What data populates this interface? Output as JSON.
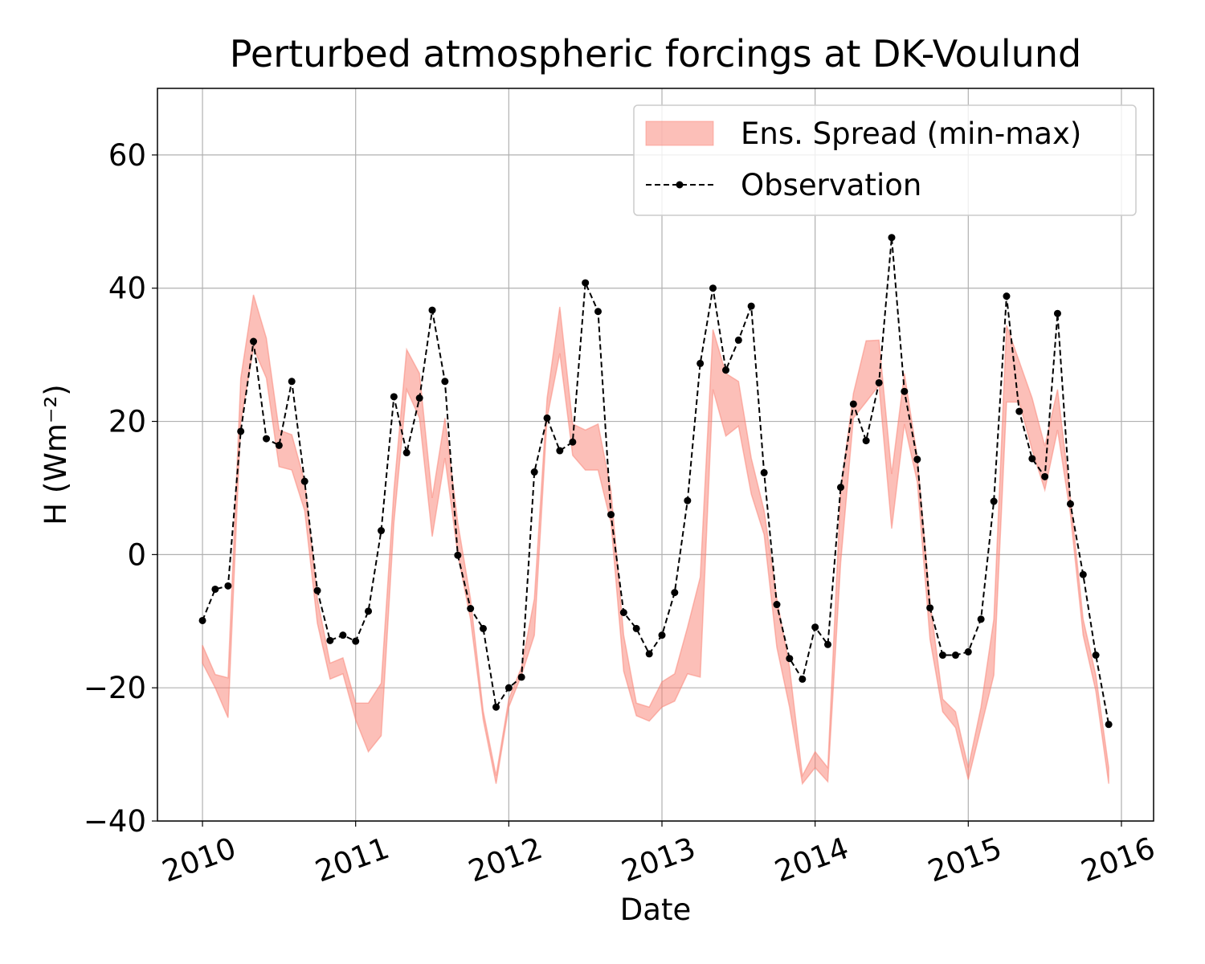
{
  "chart_data": {
    "type": "line",
    "title": "Perturbed atmospheric forcings at DK-Voulund",
    "x_label": "Date",
    "y_label": "H  (Wm⁻²)",
    "x": [
      2010,
      2010.083,
      2010.167,
      2010.25,
      2010.333,
      2010.417,
      2010.5,
      2010.583,
      2010.667,
      2010.75,
      2010.833,
      2010.917,
      2011,
      2011.083,
      2011.167,
      2011.25,
      2011.333,
      2011.417,
      2011.5,
      2011.583,
      2011.667,
      2011.75,
      2011.833,
      2011.917,
      2012,
      2012.083,
      2012.167,
      2012.25,
      2012.333,
      2012.417,
      2012.5,
      2012.583,
      2012.667,
      2012.75,
      2012.833,
      2012.917,
      2013,
      2013.083,
      2013.167,
      2013.25,
      2013.333,
      2013.417,
      2013.5,
      2013.583,
      2013.667,
      2013.75,
      2013.833,
      2013.917,
      2014,
      2014.083,
      2014.167,
      2014.25,
      2014.333,
      2014.417,
      2014.5,
      2014.583,
      2014.667,
      2014.75,
      2014.833,
      2014.917,
      2015,
      2015.083,
      2015.167,
      2015.25,
      2015.333,
      2015.417,
      2015.5,
      2015.583,
      2015.667,
      2015.75,
      2015.833,
      2015.917
    ],
    "series": [
      {
        "name": "Ens. Spread (min-max)",
        "kind": "band",
        "color": "#fa8072",
        "alpha": 0.5,
        "upper": [
          -13.6,
          -18,
          -18.5,
          26.5,
          39,
          32.5,
          18.7,
          18,
          11,
          -6.6,
          -16.3,
          -15.5,
          -22.3,
          -22.3,
          -19.3,
          9.7,
          30.8,
          27.2,
          8.5,
          20.5,
          4.8,
          -6.6,
          -23.5,
          -33.2,
          -21.7,
          -16.9,
          -6.6,
          23.5,
          37.2,
          19.6,
          18.7,
          19.6,
          9.7,
          -12.1,
          -22.3,
          -22.9,
          -19.1,
          -17.9,
          -10.9,
          -3.4,
          33.8,
          27.2,
          26,
          14.5,
          6.6,
          -6.6,
          -16.9,
          -33.2,
          -29.6,
          -32,
          9.7,
          24.2,
          32.1,
          32.2,
          12.1,
          27.2,
          14.7,
          -7,
          -21.7,
          -23.6,
          -32,
          -22.9,
          -9.7,
          34.4,
          29,
          23.5,
          16.3,
          24.8,
          8.5,
          -9.7,
          -18.1,
          -32
        ],
        "lower": [
          -16.3,
          -20,
          -24.5,
          20,
          31,
          26.5,
          13.2,
          12.7,
          6.6,
          -10.3,
          -18.7,
          -17.9,
          -24.8,
          -29.6,
          -27.2,
          4.8,
          24.8,
          20.5,
          2.7,
          14.5,
          0,
          -9.7,
          -24.8,
          -34.4,
          -22.9,
          -18.1,
          -12.1,
          20.5,
          30.2,
          14.9,
          12.7,
          12.7,
          4.8,
          -17.5,
          -24.2,
          -25,
          -22.9,
          -22,
          -17.9,
          -18.4,
          24.8,
          17.8,
          19.3,
          9.1,
          3,
          -13.9,
          -22.9,
          -34.4,
          -32,
          -34.1,
          -1.2,
          20.5,
          22.9,
          25.4,
          3.9,
          19.6,
          10.9,
          -12.7,
          -23.6,
          -26,
          -33.8,
          -26,
          -18.1,
          22.9,
          22.9,
          15.7,
          9.7,
          18.7,
          6,
          -12.1,
          -20.5,
          -34.4
        ]
      },
      {
        "name": "Observation",
        "kind": "line",
        "color": "#000000",
        "dashed": true,
        "marker": true,
        "values": [
          -9.9,
          -5.2,
          -4.7,
          18.5,
          32,
          17.4,
          16.4,
          26,
          11,
          -5.4,
          -12.9,
          -12.1,
          -13,
          -8.5,
          3.6,
          23.7,
          15.3,
          23.5,
          36.7,
          26,
          -0.1,
          -8.1,
          -11.1,
          -22.9,
          -20,
          -18.4,
          12.4,
          20.5,
          15.6,
          16.9,
          40.8,
          36.5,
          6,
          -8.7,
          -11.1,
          -14.9,
          -12.1,
          -5.7,
          8.1,
          28.7,
          40,
          27.7,
          32.2,
          37.3,
          12.3,
          -7.5,
          -15.6,
          -18.7,
          -10.9,
          -13.5,
          10.1,
          22.6,
          17.1,
          25.8,
          47.6,
          24.5,
          14.3,
          -8,
          -15.1,
          -15.1,
          -14.6,
          -9.7,
          8,
          38.8,
          21.5,
          14.4,
          11.7,
          36.2,
          7.6,
          -3,
          -15.1,
          -25.5
        ]
      }
    ],
    "xlim": [
      2009.706,
      2016.21
    ],
    "xticks": [
      2010,
      2011,
      2012,
      2013,
      2014,
      2015,
      2016
    ],
    "ylim": [
      -40,
      70
    ],
    "yticks": [
      {
        "value": -40,
        "label": "−40"
      },
      {
        "value": -20,
        "label": "−20"
      },
      0,
      20,
      40,
      60
    ],
    "grid": true,
    "legend": "upper right"
  }
}
